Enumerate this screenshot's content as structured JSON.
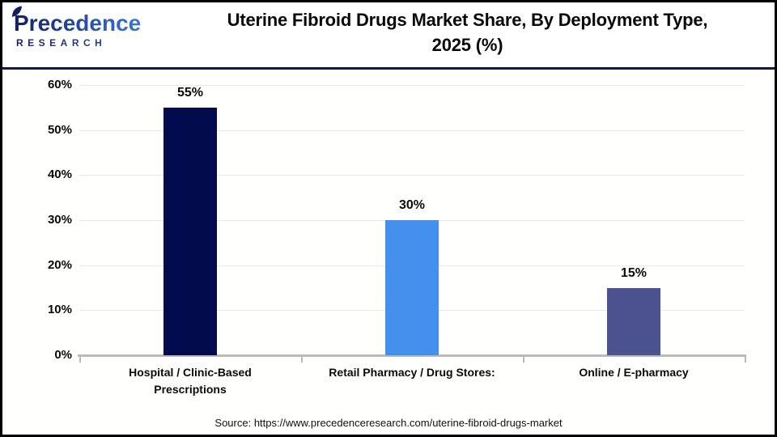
{
  "header": {
    "logo_line1": "Precedence",
    "logo_line2": "RESEARCH",
    "title_line1": "Uterine Fibroid Drugs Market Share, By Deployment Type,",
    "title_line2": "2025 (%)"
  },
  "chart_data": {
    "type": "bar",
    "title": "Uterine Fibroid Drugs Market Share, By Deployment Type, 2025 (%)",
    "categories": [
      "Hospital / Clinic-Based Prescriptions",
      "Retail Pharmacy / Drug Stores:",
      "Online / E-pharmacy"
    ],
    "values": [
      55,
      30,
      15
    ],
    "value_labels": [
      "55%",
      "30%",
      "15%"
    ],
    "bar_colors": [
      "#030b4e",
      "#4391ed",
      "#4c5190"
    ],
    "xlabel": "",
    "ylabel": "",
    "ylim": [
      0,
      60
    ],
    "yticks": [
      0,
      10,
      20,
      30,
      40,
      50,
      60
    ],
    "ytick_labels": [
      "0%",
      "10%",
      "20%",
      "30%",
      "40%",
      "50%",
      "60%"
    ],
    "grid": true,
    "legend_position": "none"
  },
  "footer": {
    "source": "Source: https://www.precedenceresearch.com/uterine-fibroid-drugs-market"
  },
  "colors": {
    "divider_navy": "#15174a",
    "axis_gray": "#b9b9b9",
    "gridline_gray": "#e8e8e8",
    "logo_navy": "#141f63",
    "logo_blue": "#3f86dd",
    "bar_dark_navy": "#030b4e",
    "bar_bright_blue": "#4391ed",
    "bar_slate_blue": "#4c5190"
  }
}
